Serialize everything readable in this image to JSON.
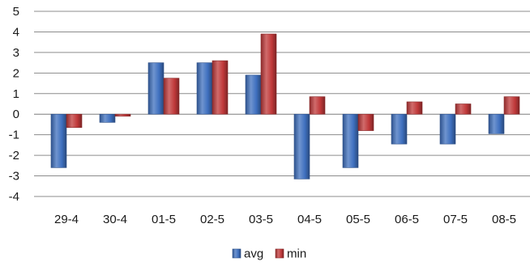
{
  "chart_data": {
    "type": "bar",
    "categories": [
      "29-4",
      "30-4",
      "01-5",
      "02-5",
      "03-5",
      "04-5",
      "05-5",
      "06-5",
      "07-5",
      "08-5"
    ],
    "series": [
      {
        "name": "avg",
        "color": "#3F70BF",
        "values": [
          -2.6,
          -0.4,
          2.5,
          2.5,
          1.9,
          -3.15,
          -2.6,
          -1.45,
          -1.45,
          -0.95
        ]
      },
      {
        "name": "min",
        "color": "#C0393A",
        "values": [
          -0.65,
          -0.1,
          1.75,
          2.6,
          3.9,
          0.85,
          -0.8,
          0.6,
          0.5,
          0.85
        ]
      }
    ],
    "ylim": [
      -4,
      5
    ],
    "yticks": [
      -4,
      -3,
      -2,
      -1,
      0,
      1,
      2,
      3,
      4,
      5
    ],
    "grid": true,
    "legend": "bottom-center",
    "title": "",
    "xlabel": "",
    "ylabel": ""
  }
}
